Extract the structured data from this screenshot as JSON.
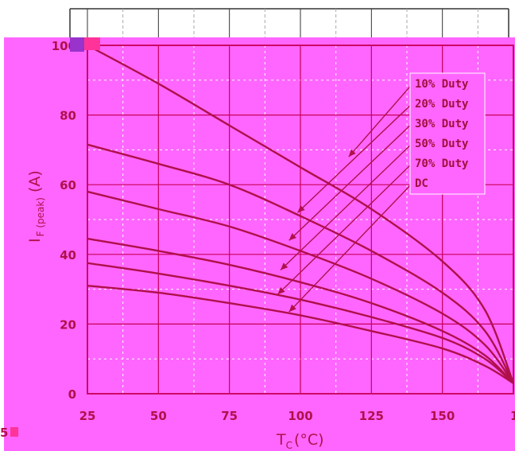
{
  "colors": {
    "background": "#ff66ff",
    "grid_major": "#c8005a",
    "grid_minor": "#ffffff",
    "curve": "#b0104a",
    "frame_top": "#333333"
  },
  "chart_data": {
    "type": "line",
    "xlabel_main": "T",
    "xlabel_sub": "C",
    "xlabel_unit": "(°C)",
    "ylabel_main": "I",
    "ylabel_sub": "F (peak)",
    "ylabel_unit": "(A)",
    "xlim": [
      25,
      175
    ],
    "ylim": [
      0,
      100
    ],
    "x_ticks": [
      "25",
      "50",
      "75",
      "100",
      "125",
      "150",
      "1"
    ],
    "y_ticks": [
      "0",
      "20",
      "40",
      "60",
      "80",
      "100"
    ],
    "grid": true,
    "legend_position": "top-right",
    "series": [
      {
        "name": "10% Duty",
        "x": [
          25,
          50,
          75,
          100,
          125,
          150,
          165,
          175
        ],
        "y": [
          100,
          89,
          77,
          65,
          53,
          38,
          24,
          3
        ]
      },
      {
        "name": "20% Duty",
        "x": [
          25,
          50,
          75,
          100,
          125,
          150,
          165,
          175
        ],
        "y": [
          71.5,
          66,
          60,
          51,
          41,
          29,
          18,
          3
        ]
      },
      {
        "name": "30% Duty",
        "x": [
          25,
          50,
          75,
          100,
          125,
          150,
          165,
          175
        ],
        "y": [
          58,
          53,
          48,
          41,
          33,
          23,
          14,
          3
        ]
      },
      {
        "name": "50% Duty",
        "x": [
          25,
          50,
          75,
          100,
          125,
          150,
          165,
          175
        ],
        "y": [
          44.5,
          41,
          37,
          32,
          26,
          18,
          11,
          3
        ]
      },
      {
        "name": "70% Duty",
        "x": [
          25,
          50,
          75,
          100,
          125,
          150,
          165,
          175
        ],
        "y": [
          37.5,
          34.5,
          31,
          27,
          22,
          16,
          10,
          3
        ]
      },
      {
        "name": "DC",
        "x": [
          25,
          50,
          75,
          100,
          125,
          150,
          165,
          175
        ],
        "y": [
          31,
          29,
          26,
          22.5,
          18,
          13,
          8,
          3
        ]
      }
    ],
    "legend_pointers": [
      {
        "series": "10% Duty",
        "x": 117,
        "y": 68
      },
      {
        "series": "20% Duty",
        "x": 99,
        "y": 52
      },
      {
        "series": "30% Duty",
        "x": 96,
        "y": 44
      },
      {
        "series": "50% Duty",
        "x": 93,
        "y": 35.5
      },
      {
        "series": "70% Duty",
        "x": 92,
        "y": 28.5
      },
      {
        "series": "DC",
        "x": 96,
        "y": 23.5
      }
    ]
  },
  "page_artifacts": {
    "left_fragment": "5"
  }
}
